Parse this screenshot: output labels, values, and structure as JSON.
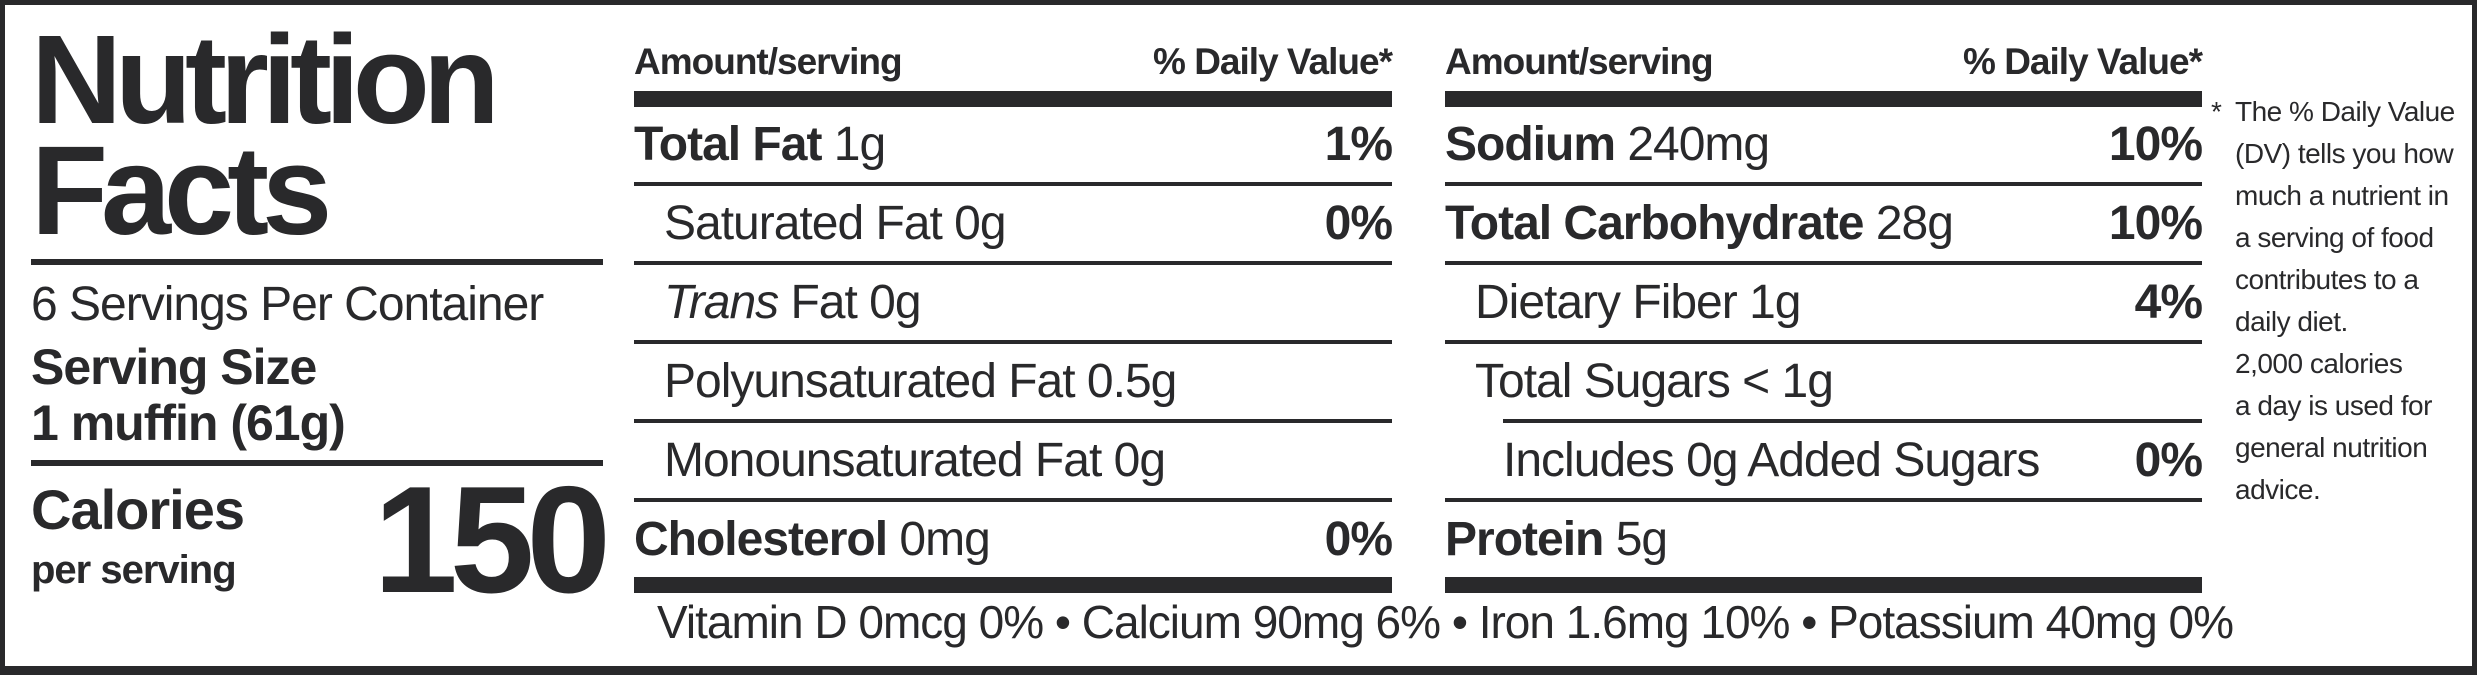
{
  "label": {
    "title_line1": "Nutrition",
    "title_line2": "Facts",
    "servings_per_container": "6 Servings Per Container",
    "serving_size_label": "Serving Size",
    "serving_size_value": "1 muffin (61g)",
    "calories_label": "Calories",
    "calories_sub": "per serving",
    "calories_value": "150"
  },
  "columns": [
    {
      "header_left": "Amount/serving",
      "header_right": "% Daily Value*",
      "rows": [
        {
          "bold": "Total Fat",
          "text": "1g",
          "dv": "1%",
          "indent": 0,
          "rule": "none"
        },
        {
          "bold": "",
          "text": "Saturated Fat 0g",
          "dv": "0%",
          "indent": 1,
          "rule": "full"
        },
        {
          "italic": "Trans",
          "text": "Fat 0g",
          "dv": "",
          "indent": 1,
          "rule": "full"
        },
        {
          "bold": "",
          "text": "Polyunsaturated Fat 0.5g",
          "dv": "",
          "indent": 1,
          "rule": "full"
        },
        {
          "bold": "",
          "text": "Monounsaturated Fat 0g",
          "dv": "",
          "indent": 1,
          "rule": "full"
        },
        {
          "bold": "Cholesterol",
          "text": "0mg",
          "dv": "0%",
          "indent": 0,
          "rule": "full"
        }
      ]
    },
    {
      "header_left": "Amount/serving",
      "header_right": "% Daily Value*",
      "rows": [
        {
          "bold": "Sodium",
          "text": "240mg",
          "dv": "10%",
          "indent": 0,
          "rule": "none"
        },
        {
          "bold": "Total Carbohydrate",
          "text": "28g",
          "dv": "10%",
          "indent": 0,
          "rule": "full"
        },
        {
          "bold": "",
          "text": "Dietary Fiber 1g",
          "dv": "4%",
          "indent": 1,
          "rule": "full"
        },
        {
          "bold": "",
          "text": "Total Sugars < 1g",
          "dv": "",
          "indent": 1,
          "rule": "full"
        },
        {
          "bold": "",
          "text": "Includes 0g Added Sugars",
          "dv": "0%",
          "indent": 2,
          "rule": "indent"
        },
        {
          "bold": "Protein",
          "text": "5g",
          "dv": "",
          "indent": 0,
          "rule": "full"
        }
      ]
    }
  ],
  "footnote": {
    "asterisk": "*",
    "lines": [
      "The % Daily Value",
      "(DV) tells you how",
      "much a nutrient in",
      "a serving of food",
      "contributes to a",
      "daily diet.",
      "2,000 calories",
      "a day is used for",
      "general nutrition",
      "advice."
    ]
  },
  "vitamins": {
    "text": "Vitamin D 0mcg 0% • Calcium 90mg 6% • Iron 1.6mg 10% • Potassium 40mg 0%"
  },
  "colors": {
    "ink": "#29292b",
    "background": "#ffffff"
  }
}
